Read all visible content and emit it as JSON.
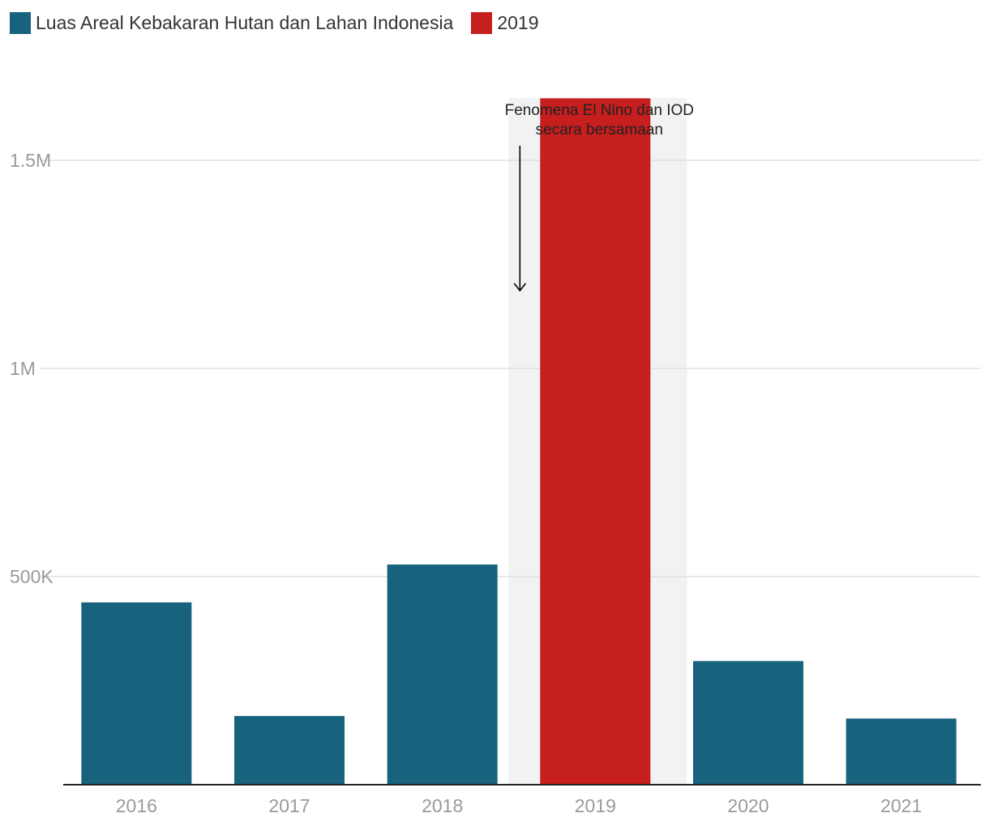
{
  "colors": {
    "primary": "#17627c",
    "highlight": "#c71e1e",
    "band": "#f2f2f2",
    "grid": "#e0e0e0",
    "axis": "#222222",
    "tick_text": "#9a9a9a"
  },
  "legend": [
    {
      "label": "Luas Areal Kebakaran Hutan dan Lahan Indonesia",
      "color": "#17627c"
    },
    {
      "label": "2019",
      "color": "#c71e1e"
    }
  ],
  "chart_data": {
    "type": "bar",
    "categories": [
      "2016",
      "2017",
      "2018",
      "2019",
      "2020",
      "2021"
    ],
    "series": [
      {
        "name": "Luas Areal Kebakaran Hutan dan Lahan Indonesia",
        "values": [
          438000,
          165000,
          529000,
          1649000,
          297000,
          159000
        ]
      }
    ],
    "highlight_category": "2019",
    "ylim": [
      0,
      1650000
    ],
    "yticks": [
      {
        "value": 500000,
        "label": "500K"
      },
      {
        "value": 1000000,
        "label": "1M"
      },
      {
        "value": 1500000,
        "label": "1.5M"
      }
    ],
    "grid": true,
    "legend_position": "top-left",
    "annotation": {
      "category": "2019",
      "lines": [
        "Fenomena El Nino dan IOD",
        "secara bersamaan"
      ]
    }
  }
}
